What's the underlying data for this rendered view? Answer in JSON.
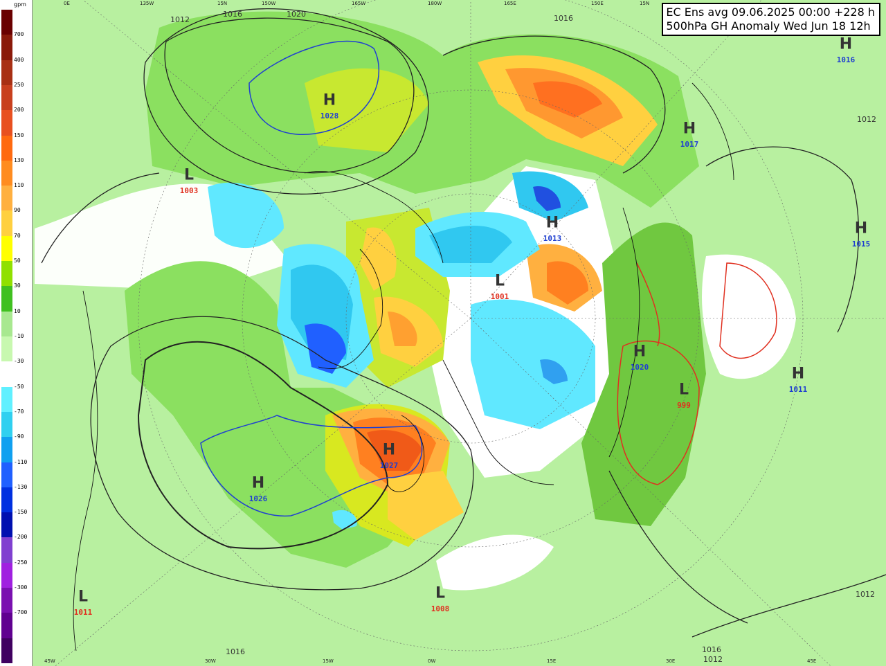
{
  "title": {
    "line1": "EC Ens avg 09.06.2025 00:00 +228 h",
    "line2": "500hPa GH Anomaly Wed Jun 18 12h"
  },
  "legend": {
    "unit": "gpm",
    "levels": [
      "700",
      "400",
      "250",
      "200",
      "150",
      "130",
      "110",
      "90",
      "70",
      "50",
      "30",
      "10",
      "-10",
      "-30",
      "-50",
      "-70",
      "-90",
      "-110",
      "-130",
      "-150",
      "-200",
      "-250",
      "-300",
      "-700"
    ],
    "colors": [
      "#6a0000",
      "#8a1a0a",
      "#a83014",
      "#c8401e",
      "#e85020",
      "#ff6a10",
      "#ff8c20",
      "#ffb040",
      "#ffd040",
      "#ffff00",
      "#90e000",
      "#40c020",
      "#a8e890",
      "#c8f8b0",
      "#ffffff",
      "#60f0ff",
      "#30d0f0",
      "#10a0f0",
      "#2060ff",
      "#0030e0",
      "#0010b0",
      "#8040d0",
      "#a020e0",
      "#7a10b0",
      "#600090",
      "#400060"
    ]
  },
  "centers": [
    {
      "type": "H",
      "pressure": "1028",
      "kind": "hi"
    },
    {
      "type": "L",
      "pressure": "1003",
      "kind": "lo"
    },
    {
      "type": "H",
      "pressure": "1017",
      "kind": "hi"
    },
    {
      "type": "H",
      "pressure": "1013",
      "kind": "hi"
    },
    {
      "type": "L",
      "pressure": "1001",
      "kind": "lo"
    },
    {
      "type": "H",
      "pressure": "1016",
      "kind": "hi"
    },
    {
      "type": "H",
      "pressure": "1015",
      "kind": "hi"
    },
    {
      "type": "H",
      "pressure": "1020",
      "kind": "hi"
    },
    {
      "type": "L",
      "pressure": "999",
      "kind": "lo"
    },
    {
      "type": "H",
      "pressure": "1011",
      "kind": "hi"
    },
    {
      "type": "H",
      "pressure": "1027",
      "kind": "hi"
    },
    {
      "type": "H",
      "pressure": "1026",
      "kind": "hi"
    },
    {
      "type": "L",
      "pressure": "1011",
      "kind": "lo"
    },
    {
      "type": "L",
      "pressure": "1008",
      "kind": "lo"
    }
  ],
  "longitudes_top": [
    "0E",
    "135W",
    "15N",
    "150W",
    "165W",
    "180W",
    "165E",
    "150E",
    "15N"
  ],
  "longitudes_bottom": [
    "45W",
    "30W",
    "15W",
    "0W",
    "15E",
    "30E",
    "45E"
  ],
  "isobar_labels": [
    "1012",
    "1016",
    "1020",
    "1016",
    "1012",
    "1016",
    "1012",
    "1016",
    "1012"
  ]
}
